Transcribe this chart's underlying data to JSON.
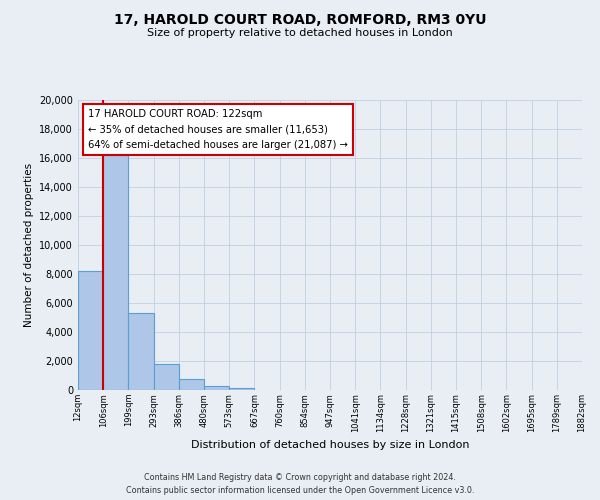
{
  "title": "17, HAROLD COURT ROAD, ROMFORD, RM3 0YU",
  "subtitle": "Size of property relative to detached houses in London",
  "xlabel": "Distribution of detached houses by size in London",
  "ylabel": "Number of detached properties",
  "bin_labels": [
    "12sqm",
    "106sqm",
    "199sqm",
    "293sqm",
    "386sqm",
    "480sqm",
    "573sqm",
    "667sqm",
    "760sqm",
    "854sqm",
    "947sqm",
    "1041sqm",
    "1134sqm",
    "1228sqm",
    "1321sqm",
    "1415sqm",
    "1508sqm",
    "1602sqm",
    "1695sqm",
    "1789sqm",
    "1882sqm"
  ],
  "bar_heights": [
    8200,
    16600,
    5300,
    1800,
    750,
    280,
    130,
    0,
    0,
    0,
    0,
    0,
    0,
    0,
    0,
    0,
    0,
    0,
    0,
    0
  ],
  "bar_color": "#aec6e8",
  "bar_edge_color": "#5a9fd4",
  "ylim": [
    0,
    20000
  ],
  "yticks": [
    0,
    2000,
    4000,
    6000,
    8000,
    10000,
    12000,
    14000,
    16000,
    18000,
    20000
  ],
  "red_line_color": "#cc0000",
  "annotation_title": "17 HAROLD COURT ROAD: 122sqm",
  "annotation_line1": "← 35% of detached houses are smaller (11,653)",
  "annotation_line2": "64% of semi-detached houses are larger (21,087) →",
  "annotation_box_color": "#ffffff",
  "annotation_box_edge": "#cc0000",
  "background_color": "#e8eef4",
  "footer_line1": "Contains HM Land Registry data © Crown copyright and database right 2024.",
  "footer_line2": "Contains public sector information licensed under the Open Government Licence v3.0."
}
